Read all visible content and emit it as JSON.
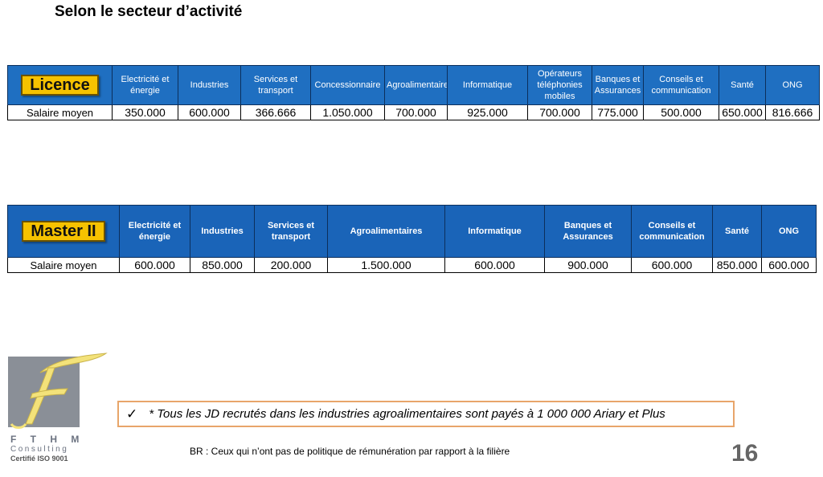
{
  "title": "Selon le secteur d’activité",
  "licence": {
    "badge": "Licence",
    "headers": [
      "Electricité et énergie",
      "Industries",
      "Services et transport",
      "Concessionnaire",
      "Agroalimentaires",
      "Informatique",
      "Opérateurs téléphonies mobiles",
      "Banques et Assurances",
      "Conseils et communication",
      "Santé",
      "ONG"
    ],
    "row_label": "Salaire moyen",
    "values": [
      "350.000",
      "600.000",
      "366.666",
      "1.050.000",
      "700.000",
      "925.000",
      "700.000",
      "775.000",
      "500.000",
      "650.000",
      "816.666"
    ]
  },
  "master": {
    "badge": "Master II",
    "headers": [
      "Electricité et énergie",
      "Industries",
      "Services et transport",
      "Agroalimentaires",
      "Informatique",
      "Banques et Assurances",
      "Conseils et communication",
      "Santé",
      "ONG"
    ],
    "row_label": "Salaire moyen",
    "values": [
      "600.000",
      "850.000",
      "200.000",
      "1.500.000",
      "600.000",
      "900.000",
      "600.000",
      "850.000",
      "600.000"
    ]
  },
  "logo": {
    "name": "F T H M",
    "subtitle": "Consulting",
    "cert": "Certifié ISO 9001",
    "letter": "F",
    "colors": {
      "box": "#8a8f97",
      "letter": "#f3e27a"
    }
  },
  "note": {
    "check_icon": "checkmark-icon",
    "text": "* Tous les JD recrutés dans les industries agroalimentaires sont payés à 1 000 000 Ariary et Plus"
  },
  "br": "BR : Ceux qui n’ont pas de politique de rémunération par rapport à la filière",
  "page_number": "16",
  "colors": {
    "header_blue": "#1f6fc1",
    "badge_yellow": "#f6c200",
    "note_border": "#e8a56a"
  }
}
